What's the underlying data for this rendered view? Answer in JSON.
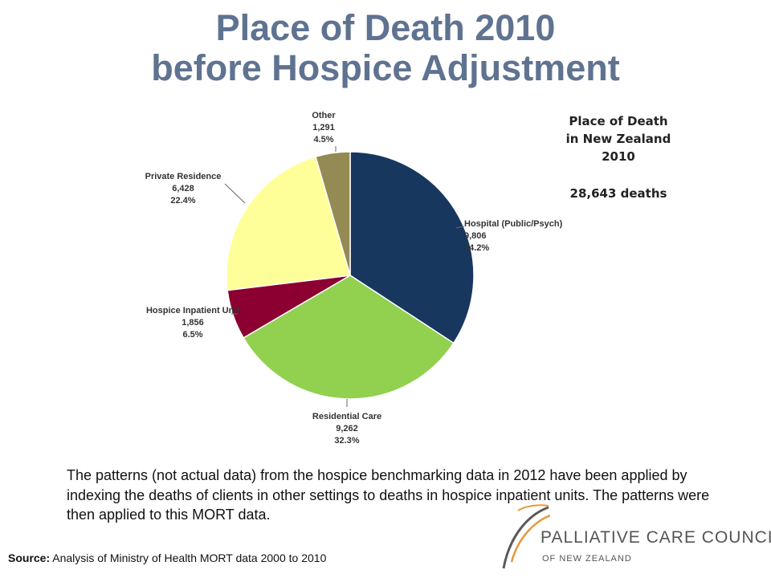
{
  "slide": {
    "title_line1": "Place of Death 2010",
    "title_line2": "before Hospice Adjustment",
    "body_text": "The patterns (not actual data) from the hospice benchmarking data in 2012 have been applied by indexing the deaths of clients in other settings to deaths in hospice inpatient units. The patterns were then applied to this MORT data.",
    "source_label": "Source:",
    "source_text": "Analysis of Ministry of Health MORT data 2000 to 2010"
  },
  "chart_data": {
    "type": "pie",
    "title_lines": [
      "Place of Death",
      "in New Zealand",
      "2010"
    ],
    "total_label": "28,643 deaths",
    "slices": [
      {
        "label": "Hospital (Public/Psych)",
        "count": "9,806",
        "value": 34.2,
        "pct_label": "34.2%",
        "color": "#17375e"
      },
      {
        "label": "Residential Care",
        "count": "9,262",
        "value": 32.3,
        "pct_label": "32.3%",
        "color": "#92d050"
      },
      {
        "label": "Hospice Inpatient Unit",
        "count": "1,856",
        "value": 6.5,
        "pct_label": "6.5%",
        "color": "#8b0030"
      },
      {
        "label": "Private Residence",
        "count": "6,428",
        "value": 22.4,
        "pct_label": "22.4%",
        "color": "#ffff99"
      },
      {
        "label": "Other",
        "count": "1,291",
        "value": 4.5,
        "pct_label": "4.5%",
        "color": "#948a54"
      }
    ]
  },
  "logo": {
    "line1": "PALLIATIVE CARE COUNCIL",
    "line2": "OF NEW ZEALAND",
    "colors": {
      "arc_dark": "#5a5a5a",
      "arc_light": "#e59a3c"
    }
  }
}
